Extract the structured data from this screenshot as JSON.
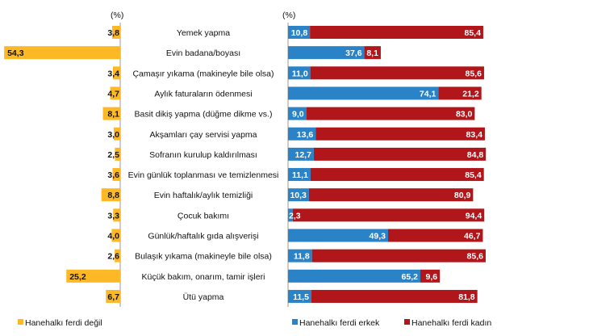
{
  "chart_data": {
    "type": "bar",
    "unit_label_left": "(%)",
    "unit_label_right": "(%)",
    "categories": [
      "Yemek yapma",
      "Evin badana/boyası",
      "Çamaşır yıkama (makineyle bile olsa)",
      "Aylık faturaların ödenmesi",
      "Basit dikiş yapma (düğme dikme vs.)",
      "Akşamları çay servisi yapma",
      "Sofranın kurulup kaldırılması",
      "Evin günlük toplanması ve temizlenmesi",
      "Evin haftalık/aylık temizliği",
      "Çocuk bakımı",
      "Günlük/haftalık gıda alışverişi",
      "Bulaşık yıkama (makineyle bile olsa)",
      "Küçük bakım, onarım, tamir işleri",
      "Ütü yapma"
    ],
    "series": [
      {
        "name": "Hanehalkı ferdi değil",
        "color": "#FDB826",
        "values": [
          3.8,
          54.3,
          3.4,
          4.7,
          8.1,
          3.0,
          2.5,
          3.6,
          8.8,
          3.3,
          4.0,
          2.6,
          25.2,
          6.7
        ],
        "labels": [
          "3,8",
          "54,3",
          "3,4",
          "4,7",
          "8,1",
          "3,0",
          "2,5",
          "3,6",
          "8,8",
          "3,3",
          "4,0",
          "2,6",
          "25,2",
          "6,7"
        ]
      },
      {
        "name": "Hanehalkı ferdi erkek",
        "color": "#2A83C6",
        "values": [
          10.8,
          37.6,
          11.0,
          74.1,
          9.0,
          13.6,
          12.7,
          11.1,
          10.3,
          2.3,
          49.3,
          11.8,
          65.2,
          11.5
        ],
        "labels": [
          "10,8",
          "37,6",
          "11,0",
          "74,1",
          "9,0",
          "13,6",
          "12,7",
          "11,1",
          "10,3",
          "2,3",
          "49,3",
          "11,8",
          "65,2",
          "11,5"
        ]
      },
      {
        "name": "Hanehalkı ferdi kadın",
        "color": "#B0161A",
        "values": [
          85.4,
          8.1,
          85.6,
          21.2,
          83.0,
          83.4,
          84.8,
          85.4,
          80.9,
          94.4,
          46.7,
          85.6,
          9.6,
          81.8
        ],
        "labels": [
          "85,4",
          "8,1",
          "85,6",
          "21,2",
          "83,0",
          "83,4",
          "84,8",
          "85,4",
          "80,9",
          "94,4",
          "46,7",
          "85,6",
          "9,6",
          "81,8"
        ]
      }
    ],
    "legend": "bottom",
    "grid": false
  }
}
